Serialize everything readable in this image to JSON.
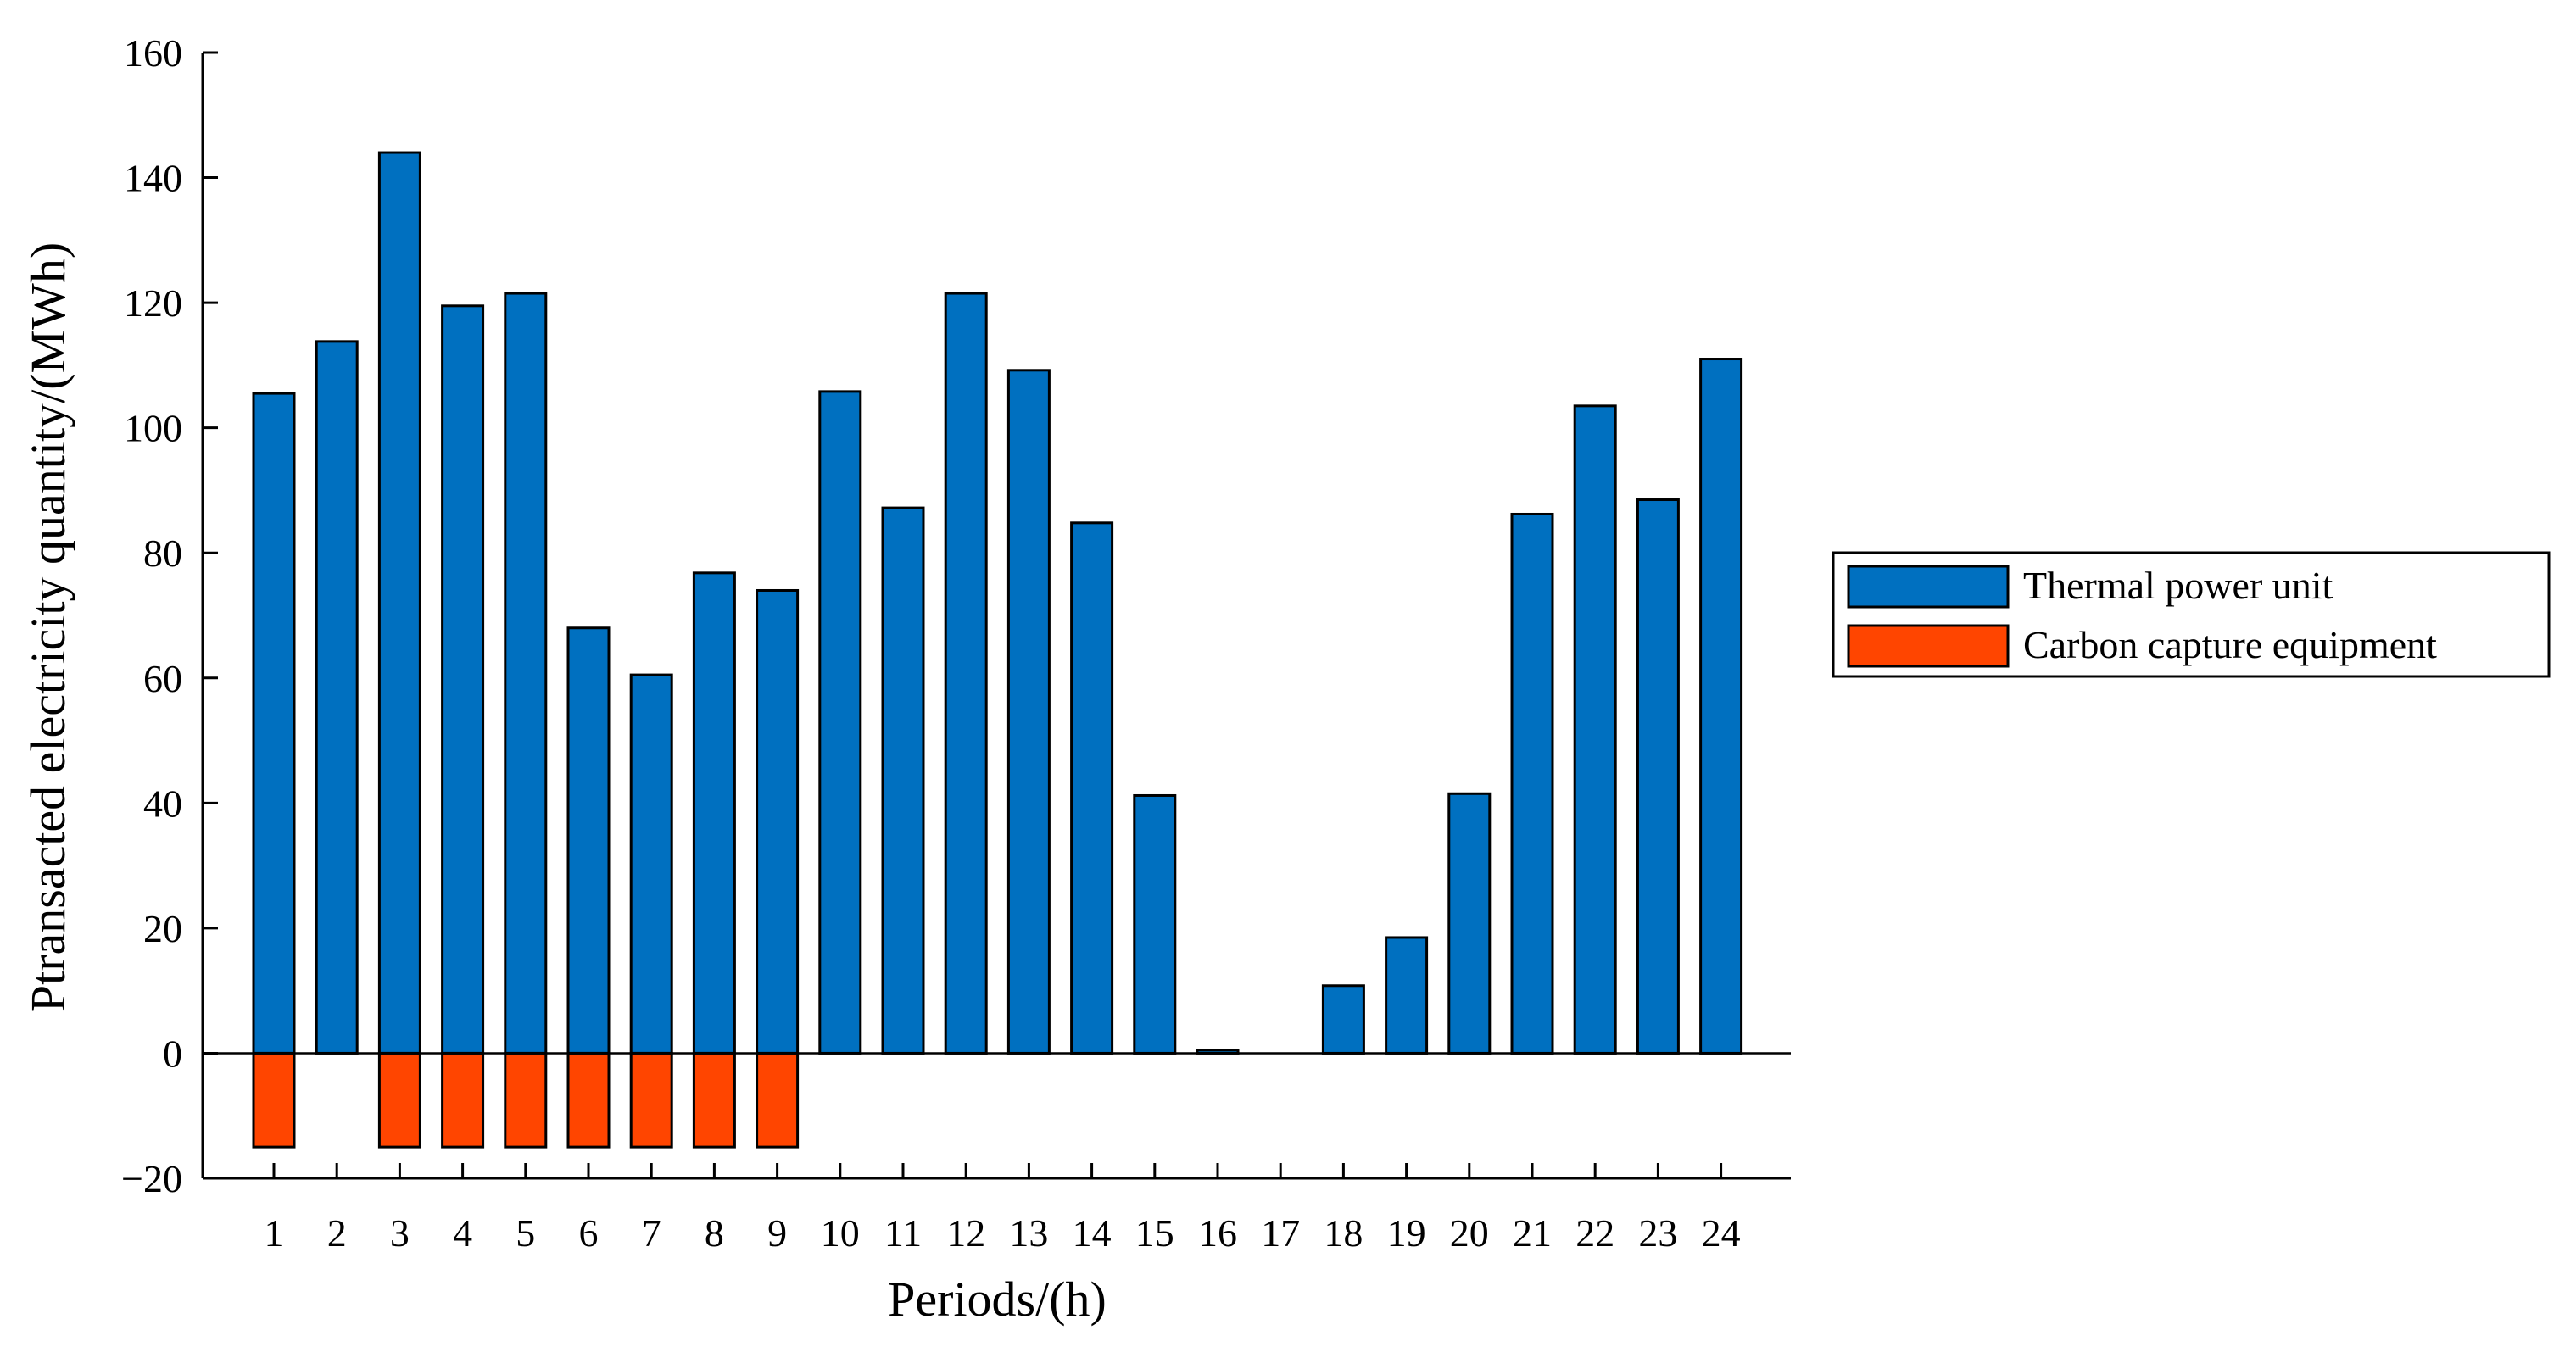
{
  "chart_data": {
    "type": "bar",
    "xlabel": "Periods/(h)",
    "ylabel": "Ptransacted electricity quantity/(MWh)",
    "ylim": [
      -20,
      160
    ],
    "yticks": [
      -20,
      0,
      20,
      40,
      60,
      80,
      100,
      120,
      140,
      160
    ],
    "categories": [
      "1",
      "2",
      "3",
      "4",
      "5",
      "6",
      "7",
      "8",
      "9",
      "10",
      "11",
      "12",
      "13",
      "14",
      "15",
      "16",
      "17",
      "18",
      "19",
      "20",
      "21",
      "22",
      "23",
      "24"
    ],
    "grid": false,
    "legend_position": "right",
    "series": [
      {
        "name": "Thermal power unit",
        "color": "#0070C0",
        "values": [
          105.5,
          113.8,
          144,
          119.5,
          121.5,
          68,
          60.5,
          76.8,
          74,
          105.8,
          87.2,
          121.5,
          109.2,
          84.8,
          41.2,
          0.5,
          0,
          10.8,
          18.5,
          41.5,
          86.2,
          103.5,
          88.5,
          111
        ]
      },
      {
        "name": "Carbon capture equipment",
        "color": "#FF4500",
        "values": [
          -15,
          0,
          -15,
          -15,
          -15,
          -15,
          -15,
          -15,
          -15,
          0,
          0,
          0,
          0,
          0,
          0,
          0,
          0,
          0,
          0,
          0,
          0,
          0,
          0,
          0
        ]
      }
    ]
  }
}
